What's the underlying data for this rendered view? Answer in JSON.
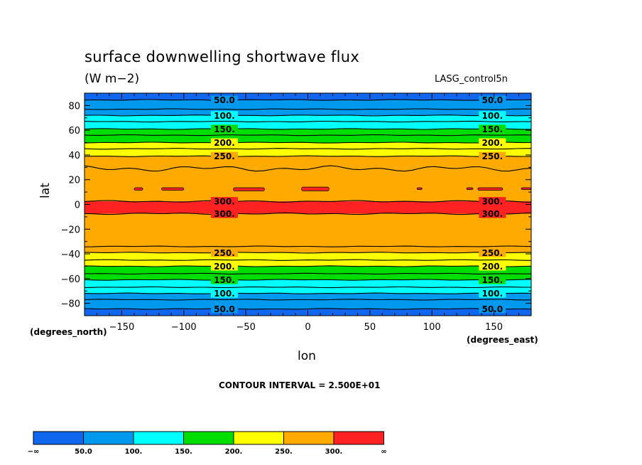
{
  "title": "surface downwelling shortwave flux",
  "units": "(W m−2)",
  "dataset": "LASG_control5n",
  "x_axis": {
    "label": "lon",
    "unit": "(degrees_east)"
  },
  "y_axis": {
    "label": "lat",
    "unit": "(degrees_north)"
  },
  "contour_interval_text": "CONTOUR INTERVAL = 2.500E+01",
  "colors": {
    "fill": [
      "#1166ee",
      "#0099ee",
      "#00ffff",
      "#00dd00",
      "#ffff00",
      "#ffaa00",
      "#ff2222"
    ]
  },
  "colorbar": {
    "labels": [
      "−∞",
      "50.0",
      "100.",
      "150.",
      "200.",
      "250.",
      "300.",
      "∞"
    ]
  },
  "chart_data": {
    "type": "heatmap",
    "subtype": "filled-contour",
    "title": "surface downwelling shortwave flux",
    "xlabel": "lon",
    "ylabel": "lat",
    "xlim": [
      -180,
      180
    ],
    "ylim": [
      -90,
      90
    ],
    "xticks": [
      -150,
      -100,
      -50,
      0,
      50,
      100,
      150
    ],
    "yticks": [
      -80,
      -60,
      -40,
      -20,
      0,
      20,
      40,
      60,
      80
    ],
    "contour_levels": [
      50,
      100,
      150,
      200,
      250,
      300
    ],
    "contour_labels": [
      "50.0",
      "100.",
      "150.",
      "200.",
      "250.",
      "300."
    ],
    "contour_latitudes": [
      {
        "level": 50,
        "lats": [
          84.5,
          -84.5
        ]
      },
      {
        "level": 75,
        "lats": [
          77,
          -77
        ]
      },
      {
        "level": 100,
        "lats": [
          72,
          -72
        ]
      },
      {
        "level": 125,
        "lats": [
          67,
          -67
        ]
      },
      {
        "level": 150,
        "lats": [
          61,
          -61
        ]
      },
      {
        "level": 175,
        "lats": [
          56,
          -56
        ]
      },
      {
        "level": 200,
        "lats": [
          50,
          -50
        ]
      },
      {
        "level": 225,
        "lats": [
          45,
          -45
        ]
      },
      {
        "level": 250,
        "lats": [
          39,
          -39
        ]
      },
      {
        "level": 275,
        "lats": [
          29,
          -34
        ]
      },
      {
        "level": 300,
        "lats": [
          2.5,
          -7.5
        ]
      }
    ],
    "bands": [
      {
        "lat_min": 84.5,
        "lat_max": 90,
        "range": "<50"
      },
      {
        "lat_min": 72,
        "lat_max": 84.5,
        "range": "50-100"
      },
      {
        "lat_min": 61,
        "lat_max": 72,
        "range": "100-150"
      },
      {
        "lat_min": 50,
        "lat_max": 61,
        "range": "150-200"
      },
      {
        "lat_min": 39,
        "lat_max": 50,
        "range": "200-250"
      },
      {
        "lat_min": 2.5,
        "lat_max": 39,
        "range": "250-300"
      },
      {
        "lat_min": -7.5,
        "lat_max": 2.5,
        "range": ">300"
      },
      {
        "lat_min": -39,
        "lat_max": -7.5,
        "range": "250-300"
      },
      {
        "lat_min": -50,
        "lat_max": -39,
        "range": "200-250"
      },
      {
        "lat_min": -61,
        "lat_max": -50,
        "range": "150-200"
      },
      {
        "lat_min": -72,
        "lat_max": -61,
        "range": "100-150"
      },
      {
        "lat_min": -84.5,
        "lat_max": -72,
        "range": "50-100"
      },
      {
        "lat_min": -90,
        "lat_max": -84.5,
        "range": "<50"
      }
    ],
    "patches_over_300": [
      {
        "lon": [
          -140,
          -133
        ],
        "lat": [
          11.5,
          13.5
        ]
      },
      {
        "lon": [
          -118,
          -100
        ],
        "lat": [
          11.5,
          13.5
        ]
      },
      {
        "lon": [
          -60,
          -35
        ],
        "lat": [
          11,
          13.5
        ]
      },
      {
        "lon": [
          -5,
          17
        ],
        "lat": [
          11,
          14
        ]
      },
      {
        "lon": [
          88,
          92
        ],
        "lat": [
          12,
          13.5
        ]
      },
      {
        "lon": [
          128,
          133
        ],
        "lat": [
          12,
          13.5
        ]
      },
      {
        "lon": [
          137,
          157
        ],
        "lat": [
          11.5,
          13.5
        ]
      },
      {
        "lon": [
          172,
          180
        ],
        "lat": [
          12,
          13.5
        ]
      }
    ],
    "label_longitudes": [
      -73,
      143
    ]
  }
}
